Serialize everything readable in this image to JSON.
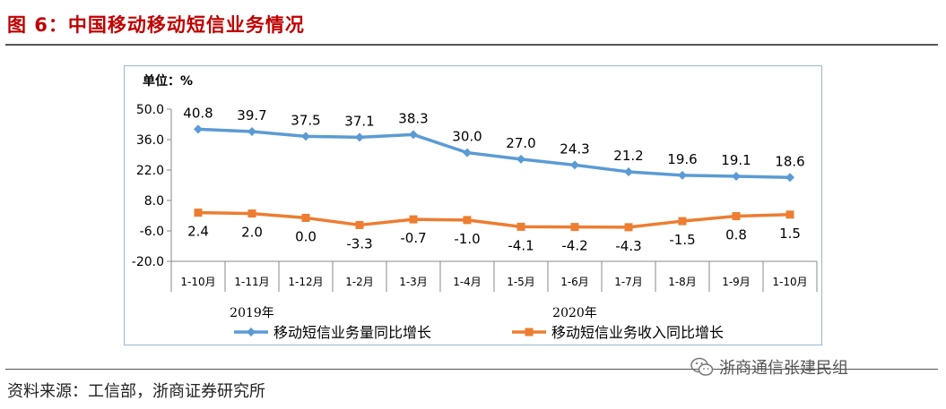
{
  "figure": {
    "title": "图 6：中国移动移动短信业务情况",
    "source": "资料来源：工信部，浙商证券研究所",
    "watermark": "浙商通信张建民组",
    "watermark_icon": "wechat-icon"
  },
  "chart_data": {
    "type": "line",
    "unit_label": "单位：%",
    "categories": [
      "1-10月",
      "1-11月",
      "1-12月",
      "1-2月",
      "1-3月",
      "1-4月",
      "1-5月",
      "1-6月",
      "1-7月",
      "1-8月",
      "1-9月",
      "1-10月"
    ],
    "year_groups": [
      {
        "label": "2019年",
        "from": 0,
        "to": 2
      },
      {
        "label": "2020年",
        "from": 3,
        "to": 11
      }
    ],
    "ylim": [
      -20.0,
      50.0
    ],
    "yticks": [
      "50.0",
      "36.0",
      "22.0",
      "8.0",
      "-6.0",
      "-20.0"
    ],
    "ytick_values": [
      50,
      36,
      22,
      8,
      -6,
      -20
    ],
    "grid": false,
    "legend_position": "bottom",
    "series": [
      {
        "name": "移动短信业务量同比增长",
        "color": "#5b9bd5",
        "marker": "diamond",
        "values": [
          40.8,
          39.7,
          37.5,
          37.1,
          38.3,
          30.0,
          27.0,
          24.3,
          21.2,
          19.6,
          19.1,
          18.6
        ],
        "labels": [
          "40.8",
          "39.7",
          "37.5",
          "37.1",
          "38.3",
          "30.0",
          "27.0",
          "24.3",
          "21.2",
          "19.6",
          "19.1",
          "18.6"
        ]
      },
      {
        "name": "移动短信业务收入同比增长",
        "color": "#ed7d31",
        "marker": "square",
        "values": [
          2.4,
          2.0,
          0.0,
          -3.3,
          -0.7,
          -1.0,
          -4.1,
          -4.2,
          -4.3,
          -1.5,
          0.8,
          1.5
        ],
        "labels": [
          "2.4",
          "2.0",
          "0.0",
          "-3.3",
          "-0.7",
          "-1.0",
          "-4.1",
          "-4.2",
          "-4.3",
          "-1.5",
          "0.8",
          "1.5"
        ]
      }
    ]
  }
}
